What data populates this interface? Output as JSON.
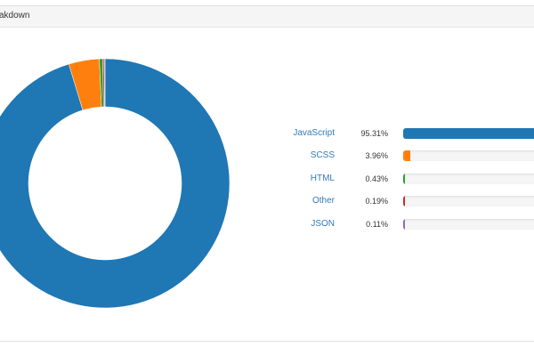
{
  "panel": {
    "title": "akdown"
  },
  "chart_data": {
    "type": "pie",
    "categories": [
      "JavaScript",
      "SCSS",
      "HTML",
      "Other",
      "JSON"
    ],
    "values": [
      95.31,
      3.96,
      0.43,
      0.19,
      0.11
    ],
    "labels": [
      "95.31%",
      "3.96%",
      "0.43%",
      "0.19%",
      "0.11%"
    ],
    "colors": [
      "#1f77b4",
      "#ff7f0e",
      "#2ca02c",
      "#d62728",
      "#9467bd"
    ],
    "donut": true
  }
}
